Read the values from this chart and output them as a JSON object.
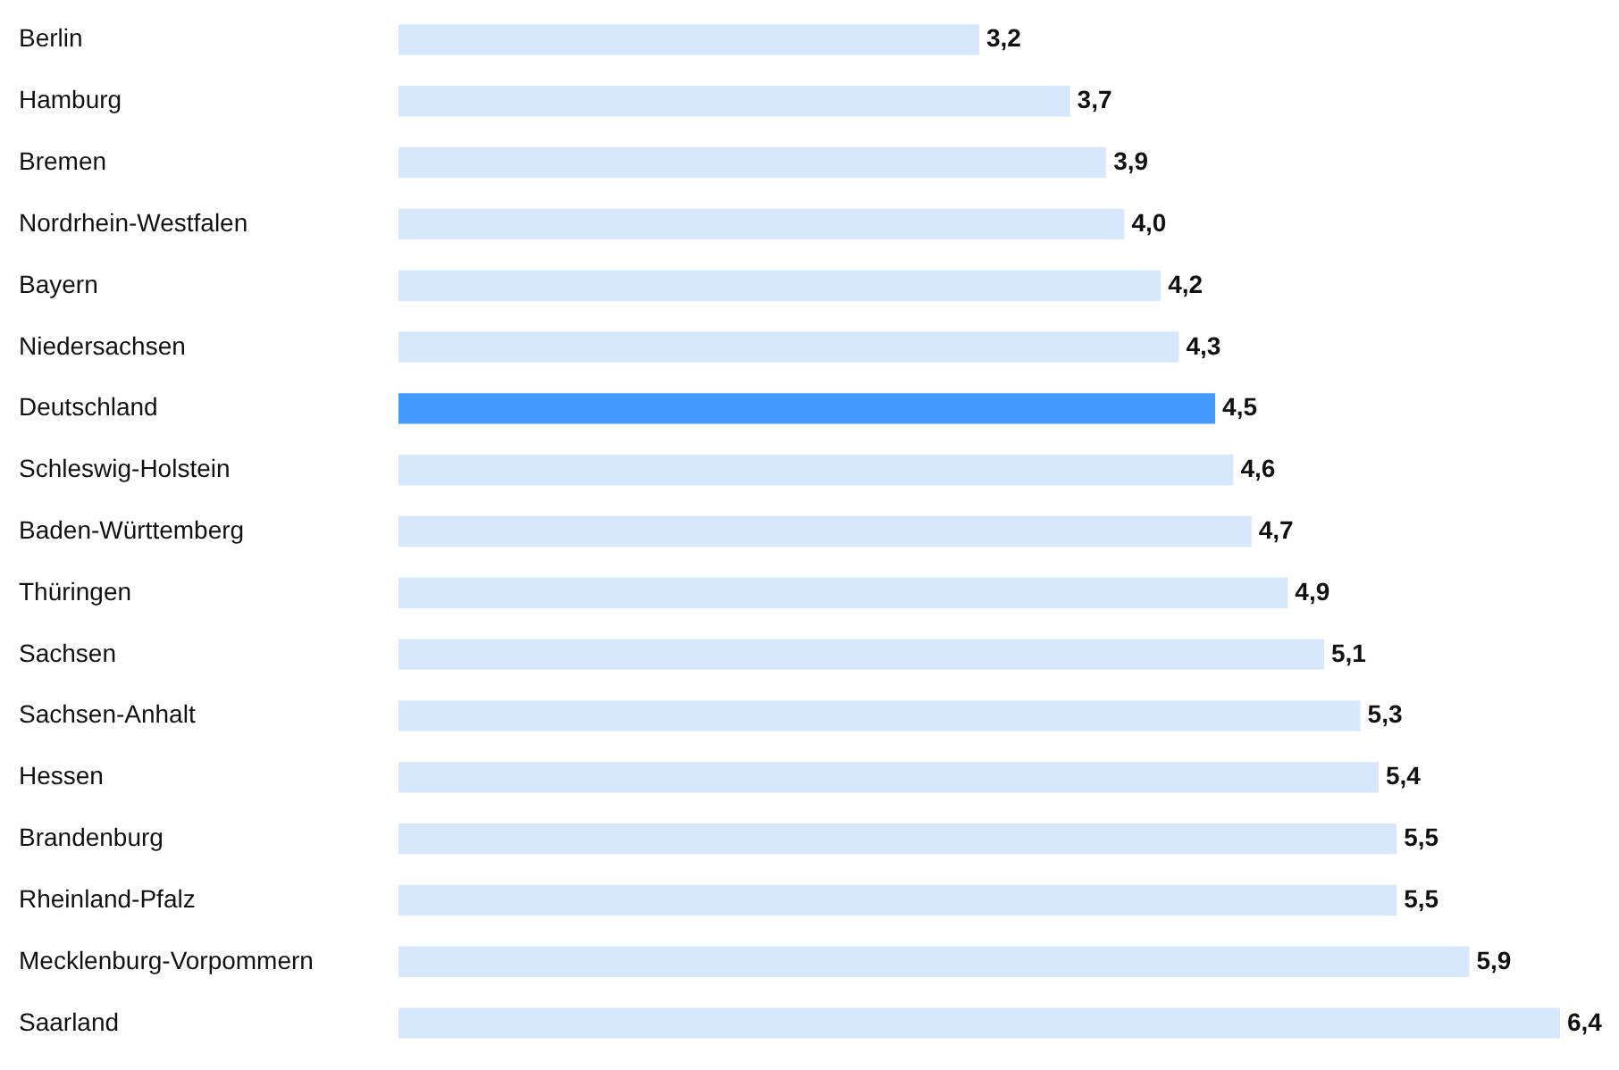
{
  "chart_data": {
    "type": "bar",
    "orientation": "horizontal",
    "categories": [
      "Berlin",
      "Hamburg",
      "Bremen",
      "Nordrhein-Westfalen",
      "Bayern",
      "Niedersachsen",
      "Deutschland",
      "Schleswig-Holstein",
      "Baden-Württemberg",
      "Thüringen",
      "Sachsen",
      "Sachsen-Anhalt",
      "Hessen",
      "Brandenburg",
      "Rheinland-Pfalz",
      "Mecklenburg-Vorpommern",
      "Saarland"
    ],
    "values": [
      3.2,
      3.7,
      3.9,
      4.0,
      4.2,
      4.3,
      4.5,
      4.6,
      4.7,
      4.9,
      5.1,
      5.3,
      5.4,
      5.5,
      5.5,
      5.9,
      6.4
    ],
    "value_labels": [
      "3,2",
      "3,7",
      "3,9",
      "4,0",
      "4,2",
      "4,3",
      "4,5",
      "4,6",
      "4,7",
      "4,9",
      "5,1",
      "5,3",
      "5,4",
      "5,5",
      "5,5",
      "5,9",
      "6,4"
    ],
    "colors": [
      "#d7e8fc",
      "#d7e8fc",
      "#d7e8fc",
      "#d7e8fc",
      "#d7e8fc",
      "#d7e8fc",
      "#4399fc",
      "#d7e8fc",
      "#d7e8fc",
      "#d7e8fc",
      "#d7e8fc",
      "#d7e8fc",
      "#d7e8fc",
      "#d7e8fc",
      "#d7e8fc",
      "#d7e8fc",
      "#d7e8fc"
    ],
    "xlim": [
      0,
      6.4
    ],
    "tick_labels": "y"
  }
}
